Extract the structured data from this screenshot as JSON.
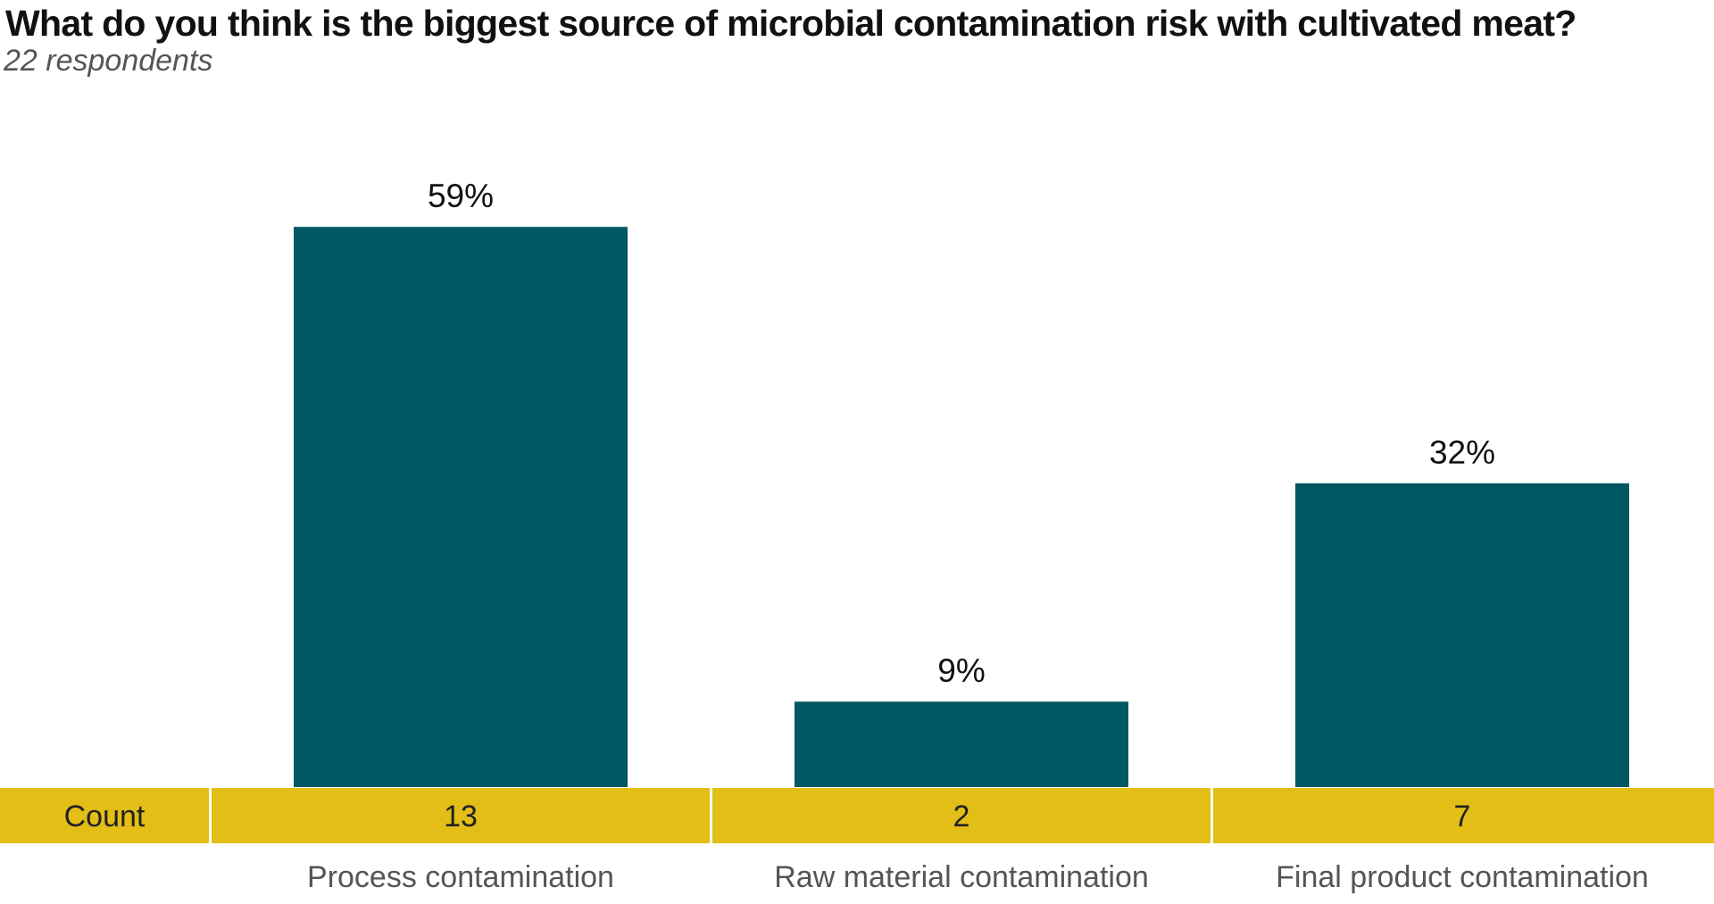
{
  "chart_data": {
    "type": "bar",
    "title": "What do you think is the biggest source of microbial contamination risk with cultivated meat?",
    "subtitle": "22 respondents",
    "categories": [
      "Process contamination",
      "Raw material contamination",
      "Final product contamination"
    ],
    "values": [
      59,
      9,
      32
    ],
    "value_labels": [
      "59%",
      "9%",
      "32%"
    ],
    "counts_label": "Count",
    "counts": [
      13,
      2,
      7
    ],
    "grid": false,
    "legend": "none",
    "colors": {
      "bar": "#025862",
      "count_band": "#E2BE17"
    }
  }
}
